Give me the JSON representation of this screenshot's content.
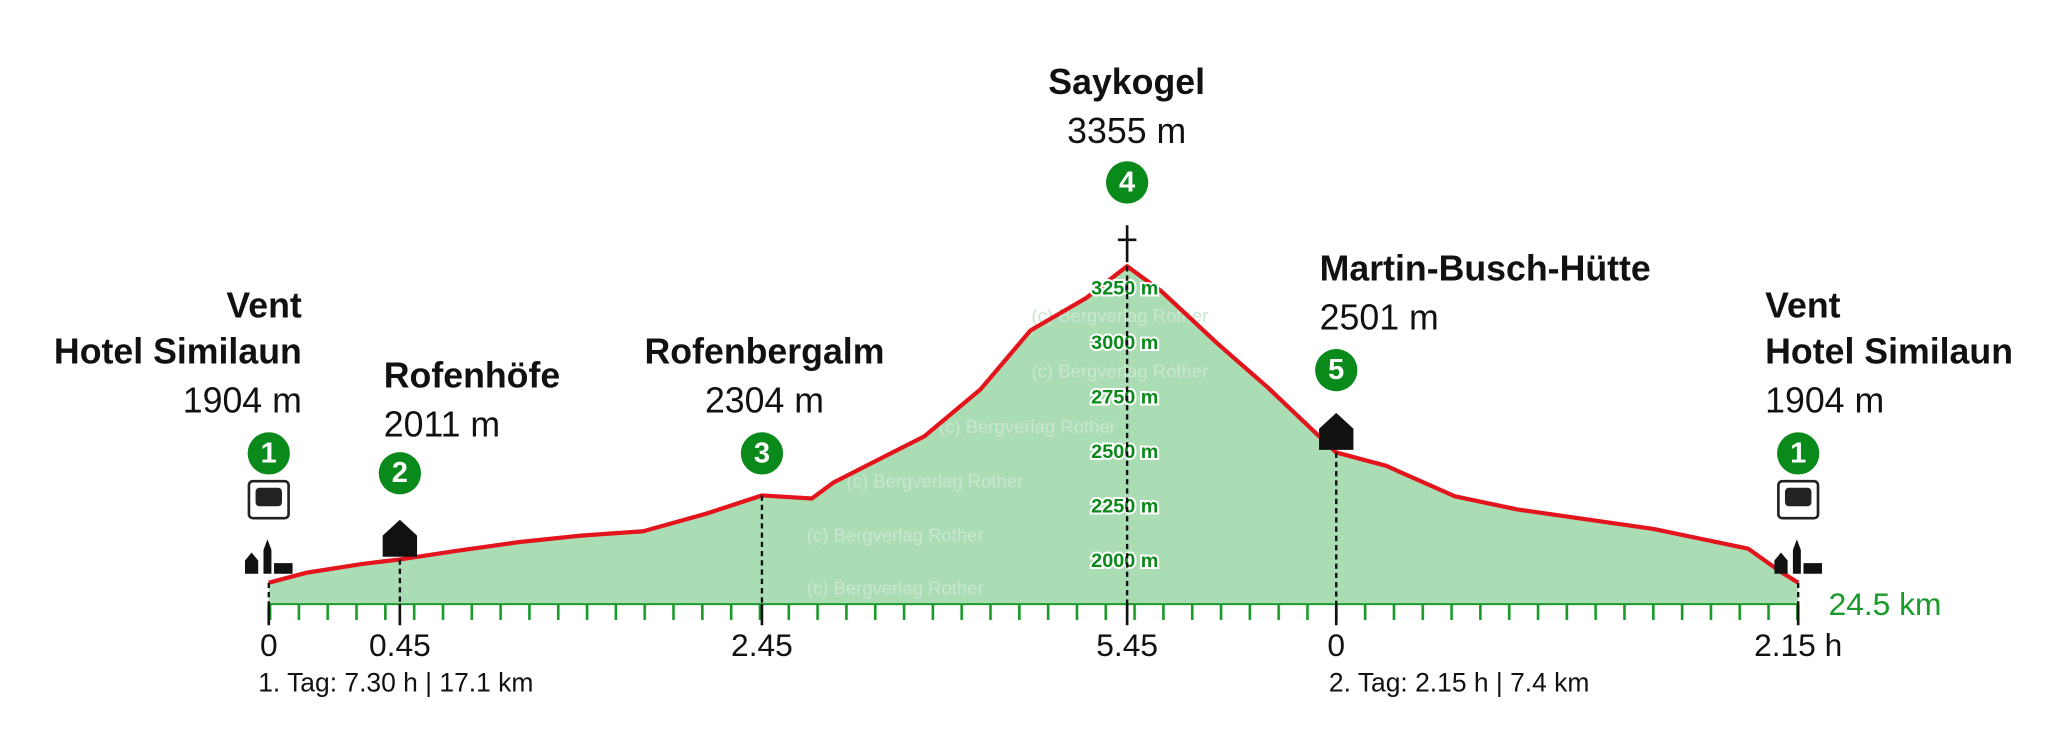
{
  "chart_data": {
    "type": "area",
    "x": [
      0,
      0.6,
      1.5,
      2.1,
      3,
      4,
      5,
      6,
      7,
      7.9,
      8.7,
      9.05,
      10.5,
      11.4,
      12.2,
      13.1,
      13.75,
      14.3,
      15.2,
      16,
      17.1,
      17.9,
      19,
      20,
      22.2,
      23.7,
      24.2,
      24.5
    ],
    "values": [
      1904,
      1950,
      1990,
      2011,
      2050,
      2090,
      2120,
      2140,
      2220,
      2304,
      2290,
      2364,
      2575,
      2790,
      3060,
      3210,
      3355,
      3240,
      3000,
      2800,
      2501,
      2440,
      2300,
      2240,
      2150,
      2060,
      1958,
      1904
    ],
    "color": "#e3141c",
    "fill": "#a6dbb0",
    "xlim": [
      0,
      24.5
    ],
    "ylim": [
      1800,
      3500
    ],
    "yticks": [
      {
        "value": 2000,
        "label": "2000 m"
      },
      {
        "value": 2250,
        "label": "2250 m"
      },
      {
        "value": 2500,
        "label": "2500 m"
      },
      {
        "value": 2750,
        "label": "2750 m"
      },
      {
        "value": 3000,
        "label": "3000 m"
      },
      {
        "value": 3250,
        "label": "3250 m"
      }
    ],
    "xticks": [
      {
        "value": 0,
        "label": "0"
      },
      {
        "value": 2.1,
        "label": "0.45"
      },
      {
        "value": 7.9,
        "label": "2.45"
      },
      {
        "value": 13.75,
        "label": "5.45"
      },
      {
        "value": 17.1,
        "label": "0"
      },
      {
        "value": 24.5,
        "label": "2.15 h"
      }
    ],
    "distance_label": "24.5 km",
    "days": [
      "1. Tag:  7.30 h | 17.1 km",
      "2. Tag:  2.15 h | 7.4 km"
    ],
    "watermark": "(c) Bergverlag Rother",
    "waypoints": [
      {
        "number": 1,
        "name": [
          "Vent",
          "Hotel Similaun"
        ],
        "elevation": 1904,
        "elevation_label": "1904 m",
        "km": 0
      },
      {
        "number": 2,
        "name": [
          "Rofenhöfe"
        ],
        "elevation": 2011,
        "elevation_label": "2011 m",
        "km": 2.1
      },
      {
        "number": 3,
        "name": [
          "Rofenbergalm"
        ],
        "elevation": 2304,
        "elevation_label": "2304 m",
        "km": 7.9
      },
      {
        "number": 4,
        "name": [
          "Saykogel"
        ],
        "elevation": 3355,
        "elevation_label": "3355 m",
        "km": 13.75
      },
      {
        "number": 5,
        "name": [
          "Martin-Busch-Hütte"
        ],
        "elevation": 2501,
        "elevation_label": "2501 m",
        "km": 17.1
      },
      {
        "number": 1,
        "name": [
          "Vent",
          "Hotel Similaun"
        ],
        "elevation": 1904,
        "elevation_label": "1904 m",
        "km": 24.5
      }
    ]
  }
}
